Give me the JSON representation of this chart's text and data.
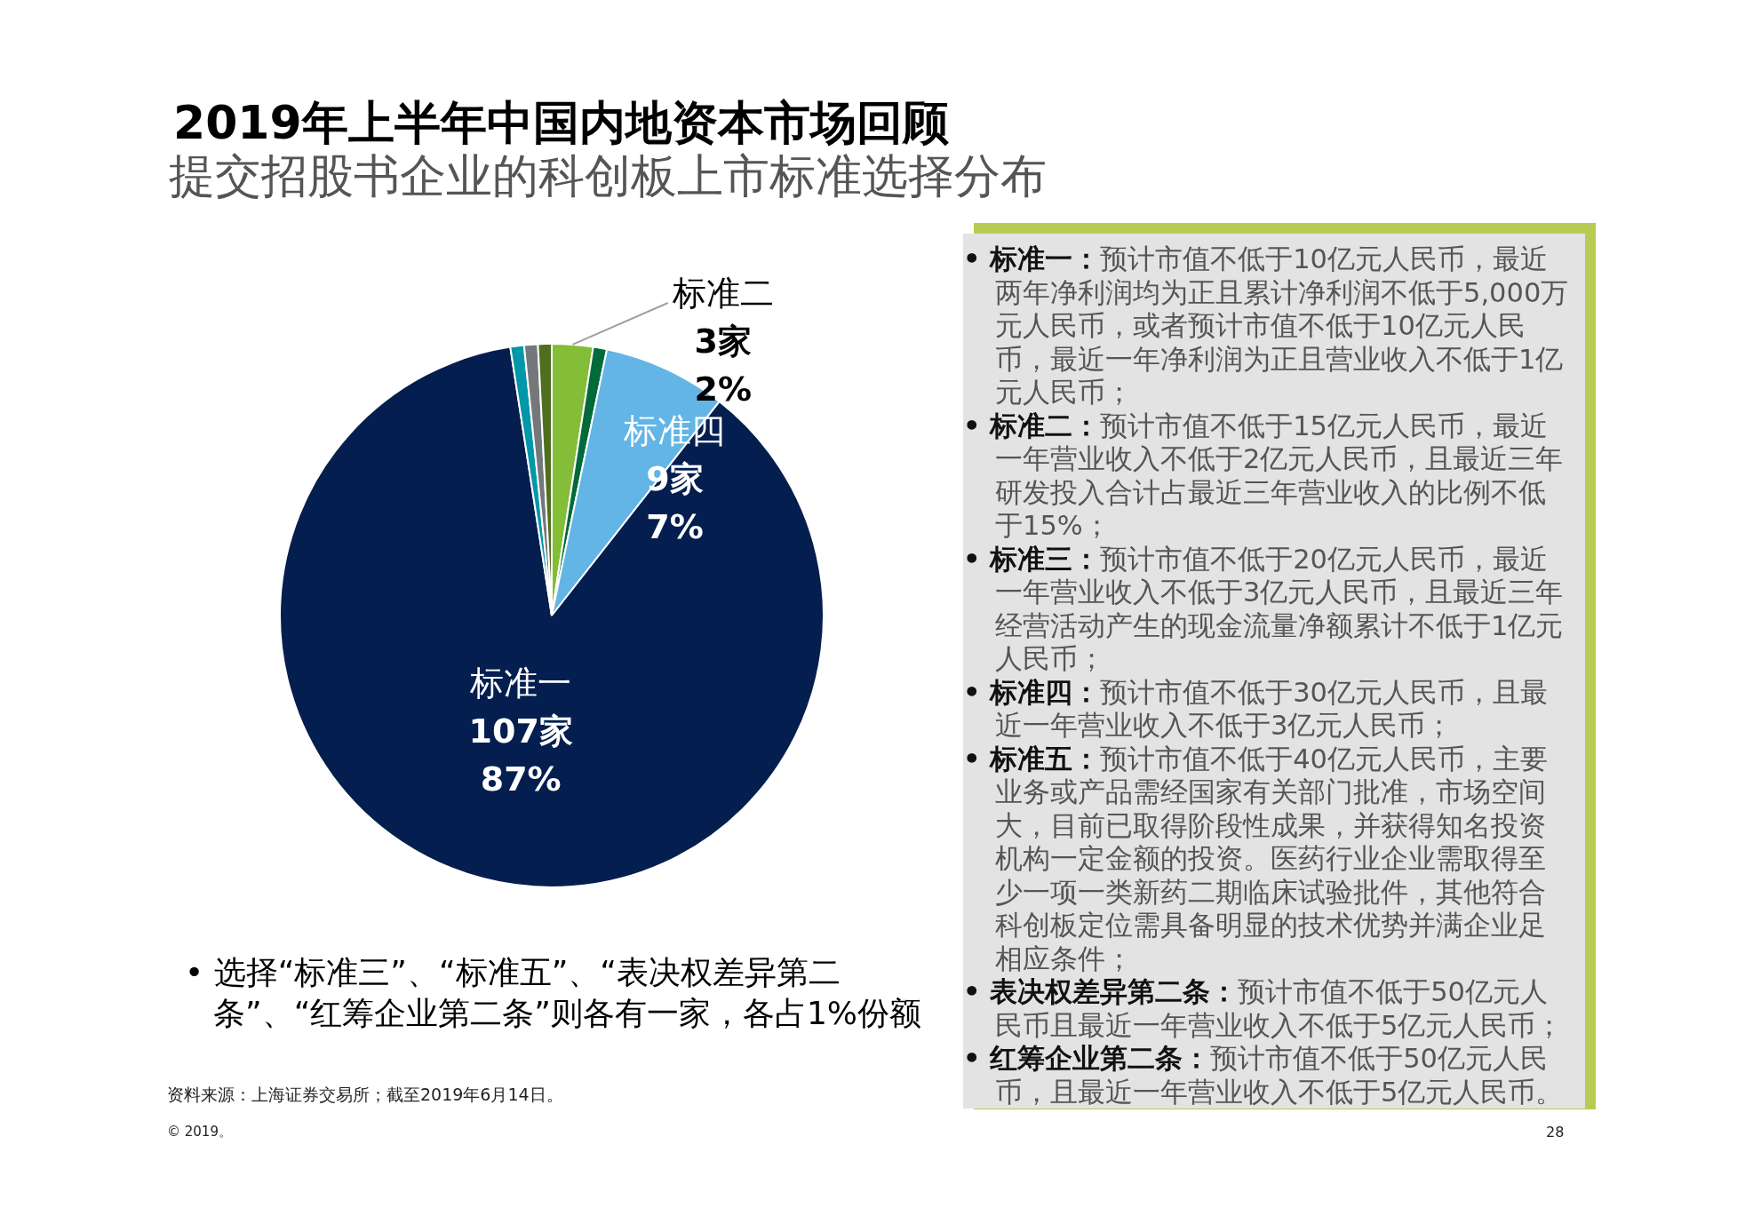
{
  "chart_data": {
    "type": "pie",
    "title": "2019年上半年中国内地资本市场回顾",
    "subtitle": "提交招股书企业的科创板上市标准选择分布",
    "categories": [
      "标准二",
      null,
      "标准四",
      "标准一",
      null,
      null,
      null
    ],
    "values": [
      3,
      1,
      9,
      107,
      1,
      1,
      1
    ],
    "value_labels": [
      "3家\n2%",
      null,
      "9家\n7%",
      "107家\n87%",
      null,
      null,
      null
    ],
    "colors": [
      "#84bd37",
      "#006a3a",
      "#62b5e5",
      "#041e4f",
      "#0097a9",
      "#75787b",
      "#4f6f1f"
    ],
    "legend": false,
    "annotations": [
      "• 标准一：预计市值不低于10亿元人民币，最近两年净利润均为正且累计净利润不低于5,000万元人民币，或者预计市值不低于10亿元人民币，最近一年净利润为正且营业收入不低于1亿元人民币；",
      "• 标准二：预计市值不低于15亿元人民币，最近一年营业收入不低于2亿元人民币，且最近三年研发投入合计占最近三年营业收入的比例不低于15%；",
      "• 标准三：预计市值不低于20亿元人民币，最近一年营业收入不低于3亿元人民币，且最近三年经营活动产生的现金流量净额累计不低于1亿元人民币；",
      "• 标准四：预计市值不低于30亿元人民币，且最近一年营业收入不低于3亿元人民币；",
      "• 标准五：预计市值不低于40亿元人民币，主要业务或产品需经国家有关部门批准，市场空间大，目前已取得阶段性成果，并获得知名投资机构一定金额的投资。医药行业企业需取得至少一项一类新药二期临床试验批件，其他符合科创板定位需具备明显的技术优势并满企业足相应条件；",
      "• 表决权差异第二条：预计市值不低于50亿元人民币且最近一年营业收入不低于5亿元人民币；",
      "• 红筹企业第二条：预计市值不低于50亿元人民币，且最近一年营业收入不低于5亿元人民币。",
      "• 选择“标准三”、“标准五”、“表决权差异第二条”、“红筹企业第二条”则各有一家，各占1%份额",
      "资料来源：上海证券交易所；截至2019年6月14日。",
      "© 2019。",
      "28"
    ]
  }
}
